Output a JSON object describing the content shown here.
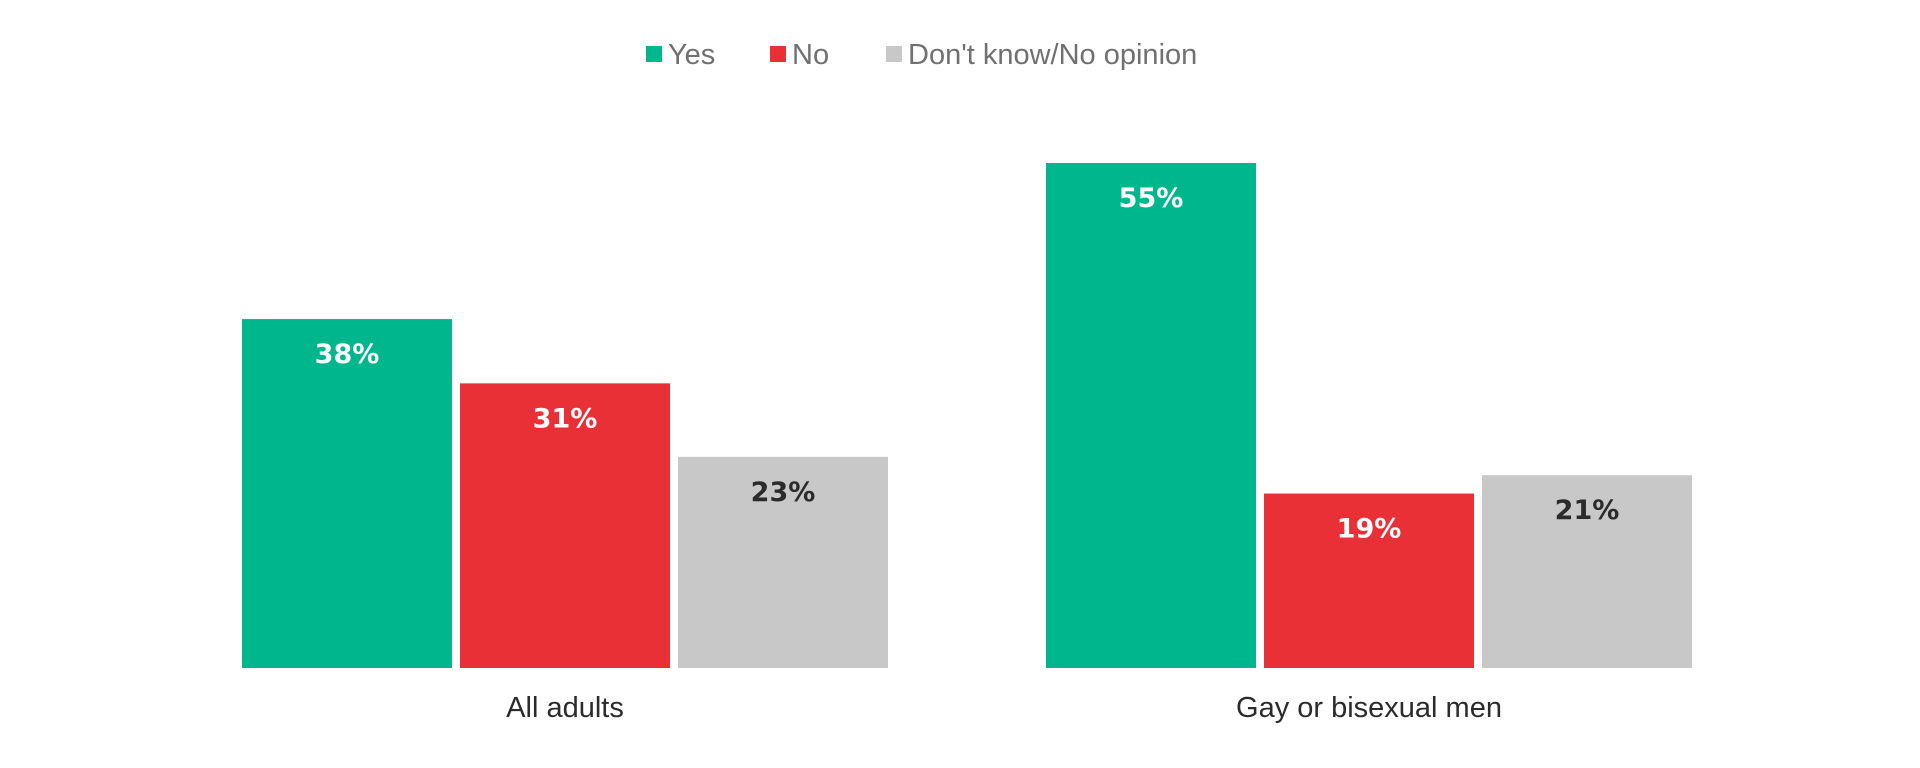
{
  "chart_data": {
    "type": "bar",
    "categories": [
      "All adults",
      "Gay or bisexual men"
    ],
    "series": [
      {
        "name": "Yes",
        "values": [
          38,
          55
        ],
        "color": "#00B68C",
        "label_color": "#ffffff"
      },
      {
        "name": "No",
        "values": [
          31,
          19
        ],
        "color": "#E93037",
        "label_color": "#ffffff"
      },
      {
        "name": "Don't know/No opinion",
        "values": [
          23,
          21
        ],
        "color": "#C8C8C8",
        "label_color": "#2b2b2b"
      }
    ],
    "value_suffix": "%",
    "ylim": [
      0,
      60
    ],
    "grid": false,
    "legend": "top-center"
  }
}
